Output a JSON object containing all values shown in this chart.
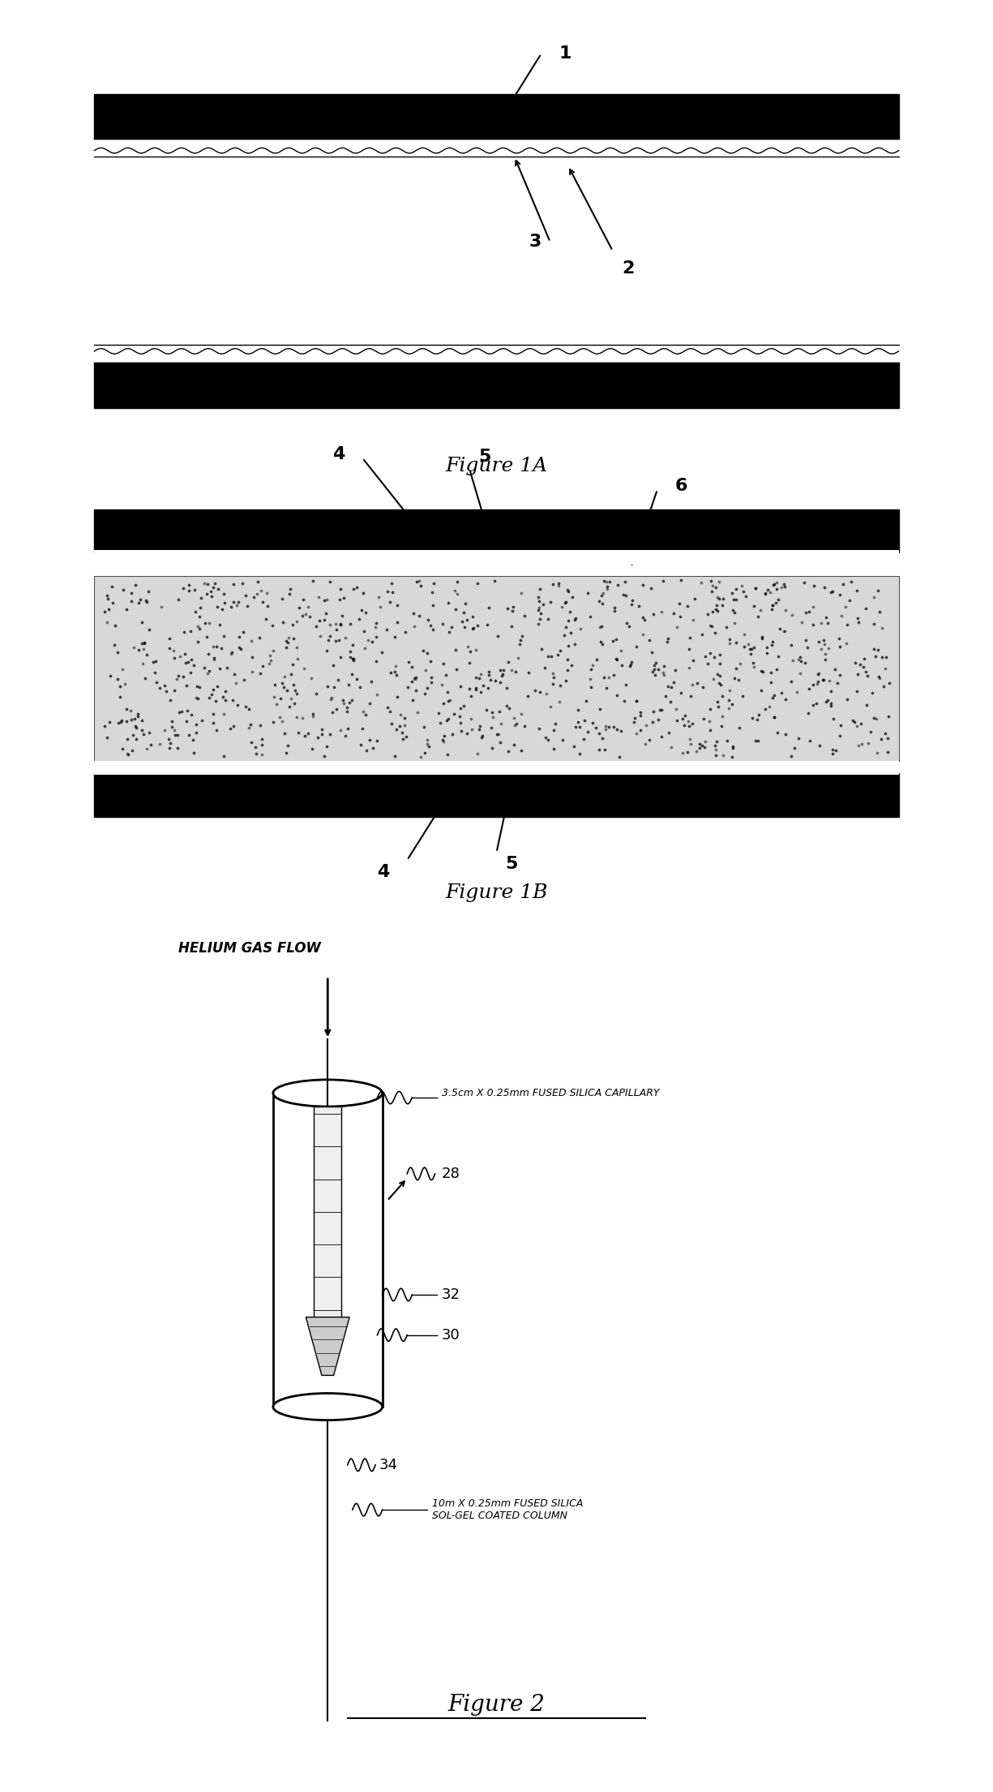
{
  "bg_color": "#ffffff",
  "fig_width": 12.25,
  "fig_height": 22.09,
  "fig1A": {
    "title": "Figure 1A",
    "label1": "1",
    "label2": "2",
    "label3": "3"
  },
  "fig1B": {
    "title": "Figure 1B",
    "label4": "4",
    "label5": "5",
    "label6": "6"
  },
  "fig2": {
    "title": "Figure 2",
    "helium_label": "HELIUM GAS FLOW",
    "capillary_label": "3.5cm X 0.25mm FUSED SILICA CAPILLARY",
    "label28": "28",
    "label32": "32",
    "label30": "30",
    "label34": "34",
    "column_label": "10m X 0.25mm FUSED SILICA\nSOL-GEL COATED COLUMN"
  }
}
